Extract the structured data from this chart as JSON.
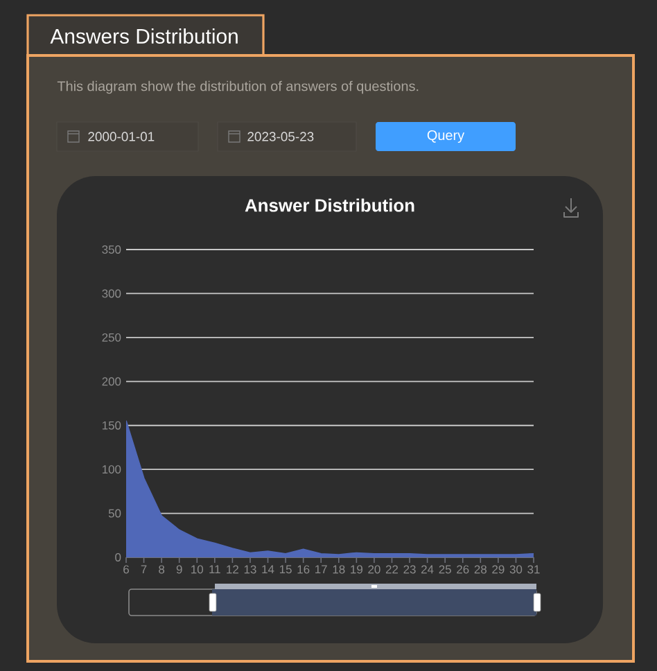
{
  "chart_data": {
    "type": "area",
    "title": "Answer Distribution",
    "annotations": [
      "Answers Distribution",
      "This diagram show the distribution of answers of questions.",
      "2000-01-01",
      "2023-05-23",
      "Query"
    ],
    "categories": [
      "6",
      "7",
      "8",
      "9",
      "10",
      "11",
      "12",
      "13",
      "14",
      "15",
      "16",
      "17",
      "18",
      "19",
      "20",
      "22",
      "23",
      "24",
      "25",
      "26",
      "28",
      "29",
      "30",
      "31"
    ],
    "values": [
      155,
      90,
      47,
      31,
      21,
      16,
      10,
      5,
      7,
      4,
      9,
      4,
      3,
      5,
      4,
      4,
      4,
      3,
      3,
      3,
      3,
      3,
      3,
      4
    ],
    "color": "#5068b8",
    "ylim": [
      0,
      350
    ],
    "yticks": [
      0,
      50,
      100,
      150,
      200,
      250,
      300,
      350
    ],
    "grid": "y"
  }
}
